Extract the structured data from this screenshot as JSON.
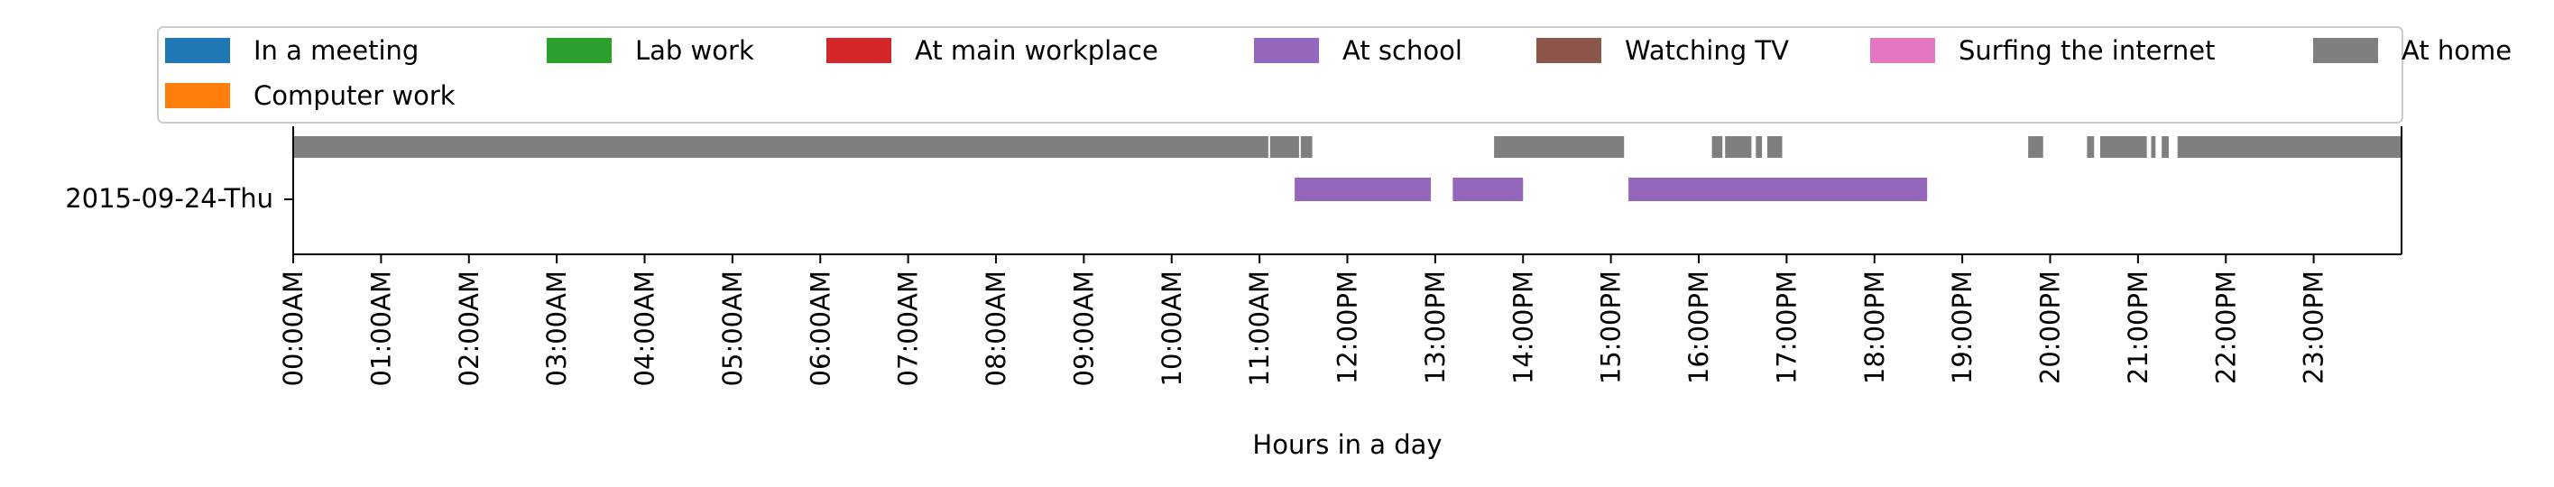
{
  "chart_data": {
    "type": "timeline",
    "title": "",
    "xlabel": "Hours in a day",
    "ylabel": "",
    "xlim": [
      0,
      24
    ],
    "categories": [
      "2015-09-24-Thu"
    ],
    "x_ticks": [
      0,
      1,
      2,
      3,
      4,
      5,
      6,
      7,
      8,
      9,
      10,
      11,
      12,
      13,
      14,
      15,
      16,
      17,
      18,
      19,
      20,
      21,
      22,
      23
    ],
    "x_tick_labels": [
      "00:00AM",
      "01:00AM",
      "02:00AM",
      "03:00AM",
      "04:00AM",
      "05:00AM",
      "06:00AM",
      "07:00AM",
      "08:00AM",
      "09:00AM",
      "10:00AM",
      "11:00AM",
      "12:00PM",
      "13:00PM",
      "14:00PM",
      "15:00PM",
      "16:00PM",
      "17:00PM",
      "18:00PM",
      "19:00PM",
      "20:00PM",
      "21:00PM",
      "22:00PM",
      "23:00PM"
    ],
    "legend_position": "top",
    "legend": [
      {
        "name": "In a meeting",
        "color": "#1f77b4"
      },
      {
        "name": "Lab work",
        "color": "#2ca02c"
      },
      {
        "name": "At main workplace",
        "color": "#d62728"
      },
      {
        "name": "At school",
        "color": "#9467bd"
      },
      {
        "name": "Watching TV",
        "color": "#8c564b"
      },
      {
        "name": "Surfing the internet",
        "color": "#e377c2"
      },
      {
        "name": "At home",
        "color": "#7f7f7f"
      },
      {
        "name": "Computer work",
        "color": "#ff7f0e"
      }
    ],
    "series": [
      {
        "name": "At home",
        "color": "#7f7f7f",
        "lane": "upper",
        "intervals": [
          [
            0.0,
            11.1
          ],
          [
            11.12,
            11.45
          ],
          [
            11.47,
            11.6
          ],
          [
            13.67,
            15.15
          ],
          [
            16.15,
            16.27
          ],
          [
            16.3,
            16.6
          ],
          [
            16.65,
            16.72
          ],
          [
            16.78,
            16.95
          ],
          [
            19.75,
            19.92
          ],
          [
            20.42,
            20.5
          ],
          [
            20.57,
            21.1
          ],
          [
            21.15,
            21.2
          ],
          [
            21.27,
            21.35
          ],
          [
            21.45,
            24.0
          ]
        ]
      },
      {
        "name": "At school",
        "color": "#9467bd",
        "lane": "lower",
        "intervals": [
          [
            11.4,
            12.95
          ],
          [
            13.2,
            14.0
          ],
          [
            15.2,
            18.6
          ]
        ]
      }
    ]
  }
}
